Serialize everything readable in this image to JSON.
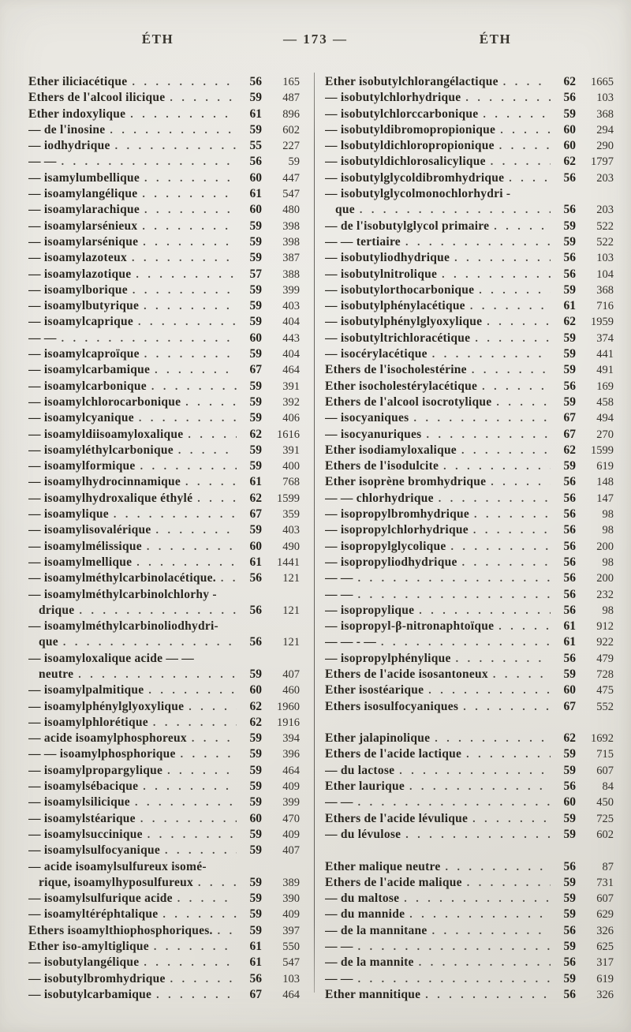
{
  "header": {
    "left": "ÉTH",
    "center": "— 173 —",
    "right": "ÉTH"
  },
  "columns": [
    {
      "rows": [
        {
          "t": "Ether iliciacétique",
          "v": "56",
          "p": "165"
        },
        {
          "t": "Ethers de l'alcool ilicique",
          "v": "59",
          "p": "487"
        },
        {
          "t": "Ether indoxylique",
          "v": "61",
          "p": "896"
        },
        {
          "t": "— de l'inosine",
          "v": "59",
          "p": "602"
        },
        {
          "t": "— iodhydrique",
          "v": "55",
          "p": "227"
        },
        {
          "t": "— —",
          "v": "56",
          "p": "59"
        },
        {
          "t": "— isamylumbellique",
          "v": "60",
          "p": "447"
        },
        {
          "t": "— isoamylangélique",
          "v": "61",
          "p": "547"
        },
        {
          "t": "— isoamylarachique",
          "v": "60",
          "p": "480"
        },
        {
          "t": "— isoamylarsénieux",
          "v": "59",
          "p": "398"
        },
        {
          "t": "— isoamylarsénique",
          "v": "59",
          "p": "398"
        },
        {
          "t": "— isoamylazoteux",
          "v": "59",
          "p": "387"
        },
        {
          "t": "— isoamylazotique",
          "v": "57",
          "p": "388"
        },
        {
          "t": "— isoamylborique",
          "v": "59",
          "p": "399"
        },
        {
          "t": "— isoamylbutyrique",
          "v": "59",
          "p": "403"
        },
        {
          "t": "— isoamylcaprique",
          "v": "59",
          "p": "404"
        },
        {
          "t": "— —",
          "v": "60",
          "p": "443"
        },
        {
          "t": "— isoamylcaproïque",
          "v": "59",
          "p": "404"
        },
        {
          "t": "— isoamylcarbamique",
          "v": "67",
          "p": "464"
        },
        {
          "t": "— isoamylcarbonique",
          "v": "59",
          "p": "391"
        },
        {
          "t": "— isoamylchlorocarbonique",
          "v": "59",
          "p": "392"
        },
        {
          "t": "— isoamylcyanique",
          "v": "59",
          "p": "406"
        },
        {
          "t": "— isoamyldiisoamyloxalique",
          "v": "62",
          "p": "1616"
        },
        {
          "t": "— isoamyléthylcarbonique",
          "v": "59",
          "p": "391"
        },
        {
          "t": "— isoamylformique",
          "v": "59",
          "p": "400"
        },
        {
          "t": "— isoamylhydrocinnamique",
          "v": "61",
          "p": "768"
        },
        {
          "t": "— isoamylhydroxalique éthylé",
          "v": "62",
          "p": "1599"
        },
        {
          "t": "— isoamylique",
          "v": "67",
          "p": "359"
        },
        {
          "t": "— isoamylisovalérique",
          "v": "59",
          "p": "403"
        },
        {
          "t": "— isoamylmélissique",
          "v": "60",
          "p": "490"
        },
        {
          "t": "— isoamylmellique",
          "v": "61",
          "p": "1441"
        },
        {
          "t": "— isoamylméthylcarbinolacétique.",
          "v": "56",
          "p": "121"
        },
        {
          "t": "— isoamylméthylcarbinolchlorhy -",
          "w": true
        },
        {
          "t": "drique",
          "v": "56",
          "p": "121",
          "c": true
        },
        {
          "t": "— isoamylméthylcarbinoliodhydri-",
          "w": true
        },
        {
          "t": "que",
          "v": "56",
          "p": "121",
          "c": true
        },
        {
          "t": "— isoamyloxalique acide — —",
          "w": true
        },
        {
          "t": "neutre",
          "v": "59",
          "p": "407",
          "c": true
        },
        {
          "t": "— isoamylpalmitique",
          "v": "60",
          "p": "460"
        },
        {
          "t": "— isoamylphénylglyoxylique",
          "v": "62",
          "p": "1960"
        },
        {
          "t": "— isoamylphlorétique",
          "v": "62",
          "p": "1916"
        },
        {
          "t": "— acide isoamylphosphoreux",
          "v": "59",
          "p": "394"
        },
        {
          "t": "— — isoamylphosphorique",
          "v": "59",
          "p": "396"
        },
        {
          "t": "— isoamylpropargylique",
          "v": "59",
          "p": "464"
        },
        {
          "t": "— isoamylsébacique",
          "v": "59",
          "p": "409"
        },
        {
          "t": "— isoamylsilicique",
          "v": "59",
          "p": "399"
        },
        {
          "t": "— isoamylstéarique",
          "v": "60",
          "p": "470"
        },
        {
          "t": "— isoamylsuccinique",
          "v": "59",
          "p": "409"
        },
        {
          "t": "— isoamylsulfocyanique",
          "v": "59",
          "p": "407"
        },
        {
          "t": "— acide isoamylsulfureux isomé-",
          "w": true
        },
        {
          "t": "rique, isoamylhyposulfureux",
          "v": "59",
          "p": "389",
          "c": true
        },
        {
          "t": "— isoamylsulfurique acide",
          "v": "59",
          "p": "390"
        },
        {
          "t": "— isoamyltéréphtalique",
          "v": "59",
          "p": "409"
        },
        {
          "t": "Ethers isoamylthiophosphoriques.",
          "v": "59",
          "p": "397"
        },
        {
          "t": "Ether iso-amyltiglique",
          "v": "61",
          "p": "550"
        },
        {
          "t": "— isobutylangélique",
          "v": "61",
          "p": "547"
        },
        {
          "t": "— isobutylbromhydrique",
          "v": "56",
          "p": "103"
        },
        {
          "t": "— isobutylcarbamique",
          "v": "67",
          "p": "464"
        }
      ]
    },
    {
      "rows": [
        {
          "t": "Ether isobutylchlorangélactique",
          "v": "62",
          "p": "1665"
        },
        {
          "t": "— isobutylchlorhydrique",
          "v": "56",
          "p": "103"
        },
        {
          "t": "— isobutylchlorccarbonique",
          "v": "59",
          "p": "368"
        },
        {
          "t": "— isobutyldibromopropionique",
          "v": "60",
          "p": "294"
        },
        {
          "t": "— lsobutyldichloropropionique",
          "v": "60",
          "p": "290"
        },
        {
          "t": "— isobutyldichlorosalicylique",
          "v": "62",
          "p": "1797"
        },
        {
          "t": "— isobutylglycoldibromhydrique",
          "v": "56",
          "p": "203"
        },
        {
          "t": "— isobutylglycolmonochlorhydri -",
          "w": true
        },
        {
          "t": "que",
          "v": "56",
          "p": "203",
          "c": true
        },
        {
          "t": "— de l'isobutylglycol primaire",
          "v": "59",
          "p": "522"
        },
        {
          "t": "— — tertiaire",
          "v": "59",
          "p": "522"
        },
        {
          "t": "— isobutyliodhydrique",
          "v": "56",
          "p": "103"
        },
        {
          "t": "— isobutylnitrolique",
          "v": "56",
          "p": "104"
        },
        {
          "t": "— isobutylorthocarbonique",
          "v": "59",
          "p": "368"
        },
        {
          "t": "— isobutylphénylacétique",
          "v": "61",
          "p": "716"
        },
        {
          "t": "— isobutylphénylglyoxylique",
          "v": "62",
          "p": "1959"
        },
        {
          "t": "— isobutyltrichloracétique",
          "v": "59",
          "p": "374"
        },
        {
          "t": "— isocérylacétique",
          "v": "59",
          "p": "441"
        },
        {
          "t": "Ethers de l'isocholestérine",
          "v": "59",
          "p": "491"
        },
        {
          "t": "Ether isocholestérylacétique",
          "v": "56",
          "p": "169"
        },
        {
          "t": "Ethers de l'alcool isocrotylique",
          "v": "59",
          "p": "458"
        },
        {
          "t": "— isocyaniques",
          "v": "67",
          "p": "494"
        },
        {
          "t": "— isocyanuriques",
          "v": "67",
          "p": "270"
        },
        {
          "t": "Ether isodiamyloxalique",
          "v": "62",
          "p": "1599"
        },
        {
          "t": "Ethers de l'isodulcite",
          "v": "59",
          "p": "619"
        },
        {
          "t": "Ether isoprène bromhydrique",
          "v": "56",
          "p": "148"
        },
        {
          "t": "— — chlorhydrique",
          "v": "56",
          "p": "147"
        },
        {
          "t": "— isopropylbromhydrique",
          "v": "56",
          "p": "98"
        },
        {
          "t": "— isopropylchlorhydrique",
          "v": "56",
          "p": "98"
        },
        {
          "t": "— isopropylglycolique",
          "v": "56",
          "p": "200"
        },
        {
          "t": "— isopropyliodhydrique",
          "v": "56",
          "p": "98"
        },
        {
          "t": "— —",
          "v": "56",
          "p": "200"
        },
        {
          "t": "— —",
          "v": "56",
          "p": "232"
        },
        {
          "t": "— isopropylique",
          "v": "56",
          "p": "98"
        },
        {
          "t": "— isopropyl-β-nitronaphtoïque",
          "v": "61",
          "p": "912"
        },
        {
          "t": "— — - —",
          "v": "61",
          "p": "922"
        },
        {
          "t": "— isopropylphénylique",
          "v": "56",
          "p": "479"
        },
        {
          "t": "Ethers de l'acide isosantoneux",
          "v": "59",
          "p": "728"
        },
        {
          "t": "Ether isostéarique",
          "v": "60",
          "p": "475"
        },
        {
          "t": "Ethers isosulfocyaniques",
          "v": "67",
          "p": "552"
        },
        {
          "sp": true
        },
        {
          "t": "Ether jalapinolique",
          "v": "62",
          "p": "1692"
        },
        {
          "t": "Ethers de l'acide lactique",
          "v": "59",
          "p": "715"
        },
        {
          "t": "— du lactose",
          "v": "59",
          "p": "607"
        },
        {
          "t": "Ether laurique",
          "v": "56",
          "p": "84"
        },
        {
          "t": "— —",
          "v": "60",
          "p": "450"
        },
        {
          "t": "Ethers de l'acide lévulique",
          "v": "59",
          "p": "725"
        },
        {
          "t": "— du lévulose",
          "v": "59",
          "p": "602"
        },
        {
          "sp": true
        },
        {
          "t": "Ether malique neutre",
          "v": "56",
          "p": "87"
        },
        {
          "t": "Ethers de l'acide malique",
          "v": "59",
          "p": "731"
        },
        {
          "t": "— du maltose",
          "v": "59",
          "p": "607"
        },
        {
          "t": "— du mannide",
          "v": "59",
          "p": "629"
        },
        {
          "t": "— de la mannitane",
          "v": "56",
          "p": "326"
        },
        {
          "t": "— —",
          "v": "59",
          "p": "625"
        },
        {
          "t": "— de la mannite",
          "v": "56",
          "p": "317"
        },
        {
          "t": "— —",
          "v": "59",
          "p": "619"
        },
        {
          "t": "Ether mannitique",
          "v": "56",
          "p": "326"
        }
      ]
    }
  ]
}
